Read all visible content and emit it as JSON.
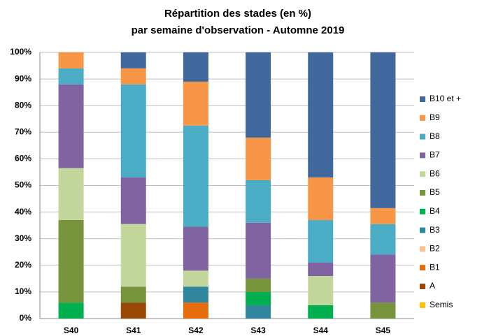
{
  "chart_data": {
    "type": "stacked_bar",
    "title": [
      "Répartition des stades (en %)",
      "par semaine d'observation - Automne 2019"
    ],
    "categories": [
      "S40",
      "S41",
      "S42",
      "S43",
      "S44",
      "S45"
    ],
    "series": [
      {
        "name": "Semis",
        "color": "#ffc000",
        "values": [
          0,
          0,
          0,
          0,
          0,
          0
        ]
      },
      {
        "name": "A",
        "color": "#984807",
        "values": [
          0,
          6,
          0,
          0,
          0,
          0
        ]
      },
      {
        "name": "B1",
        "color": "#e46c0a",
        "values": [
          0,
          0,
          6,
          0,
          0,
          0
        ]
      },
      {
        "name": "B2",
        "color": "#fac090",
        "values": [
          0,
          0,
          0,
          0,
          0,
          0
        ]
      },
      {
        "name": "B3",
        "color": "#31859c",
        "values": [
          0,
          0,
          6,
          5,
          0,
          0
        ]
      },
      {
        "name": "B4",
        "color": "#00b050",
        "values": [
          6,
          0,
          0,
          5,
          5,
          0
        ]
      },
      {
        "name": "B5",
        "color": "#77933c",
        "values": [
          31,
          6,
          0,
          5,
          0,
          6
        ]
      },
      {
        "name": "B6",
        "color": "#c3d69b",
        "values": [
          19.5,
          23.5,
          6,
          0,
          11,
          0
        ]
      },
      {
        "name": "B7",
        "color": "#8064a2",
        "values": [
          31.5,
          17.5,
          16.5,
          21,
          5,
          18
        ]
      },
      {
        "name": "B8",
        "color": "#4bacc6",
        "values": [
          6,
          35,
          38,
          16,
          16,
          11.5
        ]
      },
      {
        "name": "B9",
        "color": "#f79646",
        "values": [
          6,
          6,
          16.5,
          16,
          16,
          6
        ]
      },
      {
        "name": "B10 et +",
        "color": "#41689c",
        "values": [
          0,
          6,
          11,
          32,
          47,
          58.5
        ]
      }
    ],
    "ylim": [
      0,
      100
    ],
    "yticks": [
      {
        "value": 0,
        "label": "0%"
      },
      {
        "value": 10,
        "label": "10%"
      },
      {
        "value": 20,
        "label": "20%"
      },
      {
        "value": 30,
        "label": "30%"
      },
      {
        "value": 40,
        "label": "40%"
      },
      {
        "value": 50,
        "label": "50%"
      },
      {
        "value": 60,
        "label": "60%"
      },
      {
        "value": 70,
        "label": "70%"
      },
      {
        "value": 80,
        "label": "80%"
      },
      {
        "value": 90,
        "label": "90%"
      },
      {
        "value": 100,
        "label": "100%"
      }
    ],
    "grid": true
  }
}
